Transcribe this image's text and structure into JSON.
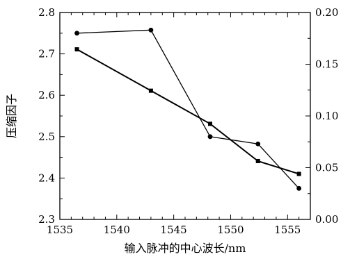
{
  "chart_data": {
    "type": "line",
    "xlabel": "输入脉冲的中心波长/nm",
    "ylabel": "压缩因子",
    "y2label": "",
    "xlim": [
      1535,
      1557
    ],
    "ylim": [
      2.3,
      2.8
    ],
    "y2lim": [
      0.0,
      0.2
    ],
    "x_ticks": [
      "1535",
      "1540",
      "1545",
      "1550",
      "1555"
    ],
    "y_ticks": [
      "2.3",
      "2.4",
      "2.5",
      "2.6",
      "2.7",
      "2.8"
    ],
    "y2_ticks": [
      "0.00",
      "0.05",
      "0.10",
      "0.15",
      "0.20"
    ],
    "grid": false,
    "series": [
      {
        "marker": "square",
        "axis": "left",
        "x": [
          1536.5,
          1543.0,
          1548.2,
          1552.4,
          1556.0
        ],
        "y": [
          2.711,
          2.611,
          2.531,
          2.441,
          2.41
        ]
      },
      {
        "marker": "circle",
        "axis": "right",
        "x": [
          1536.5,
          1543.0,
          1548.2,
          1552.4,
          1556.0
        ],
        "y": [
          0.18,
          0.183,
          0.08,
          0.073,
          0.03
        ]
      }
    ]
  }
}
